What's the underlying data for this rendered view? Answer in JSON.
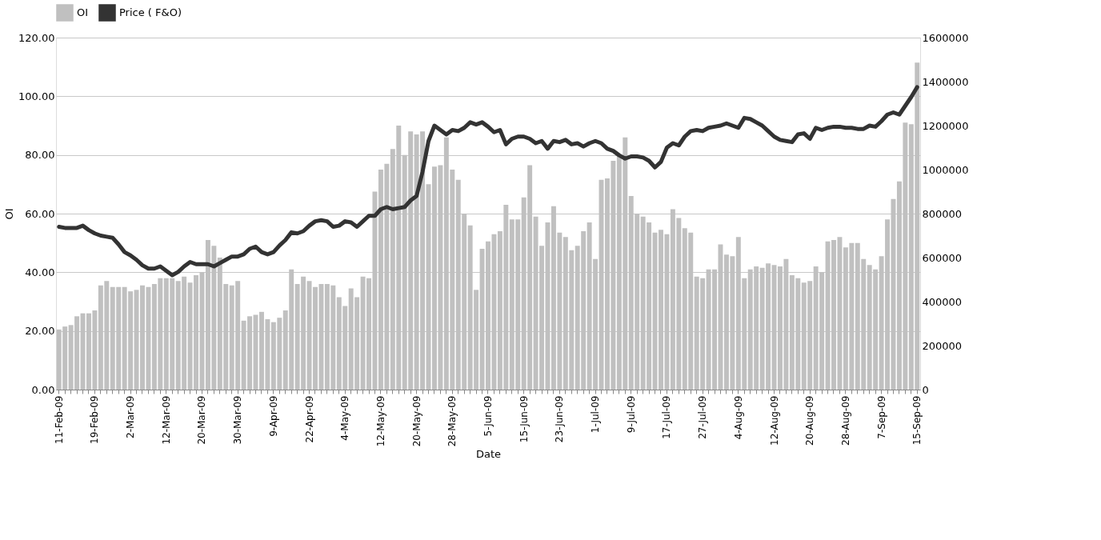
{
  "chart_data": {
    "type": "bar",
    "xlabel": "Date",
    "ylabel": "OI",
    "legend": "top",
    "grid": "y",
    "categories": [
      "11-Feb-09",
      null,
      null,
      null,
      null,
      null,
      "19-Feb-09",
      null,
      null,
      null,
      null,
      null,
      "2-Mar-09",
      null,
      null,
      null,
      null,
      null,
      "12-Mar-09",
      null,
      null,
      null,
      null,
      null,
      "20-Mar-09",
      null,
      null,
      null,
      null,
      null,
      "30-Mar-09",
      null,
      null,
      null,
      null,
      null,
      "9-Apr-09",
      null,
      null,
      null,
      null,
      null,
      "22-Apr-09",
      null,
      null,
      null,
      null,
      null,
      "4-May-09",
      null,
      null,
      null,
      null,
      null,
      "12-May-09",
      null,
      null,
      null,
      null,
      null,
      "20-May-09",
      null,
      null,
      null,
      null,
      null,
      "28-May-09",
      null,
      null,
      null,
      null,
      null,
      "5-Jun-09",
      null,
      null,
      null,
      null,
      null,
      "15-Jun-09",
      null,
      null,
      null,
      null,
      null,
      "23-Jun-09",
      null,
      null,
      null,
      null,
      null,
      "1-Jul-09",
      null,
      null,
      null,
      null,
      null,
      "9-Jul-09",
      null,
      null,
      null,
      null,
      null,
      "17-Jul-09",
      null,
      null,
      null,
      null,
      null,
      "27-Jul-09",
      null,
      null,
      null,
      null,
      null,
      "4-Aug-09",
      null,
      null,
      null,
      null,
      null,
      "12-Aug-09",
      null,
      null,
      null,
      null,
      null,
      "20-Aug-09",
      null,
      null,
      null,
      null,
      null,
      "28-Aug-09",
      null,
      null,
      null,
      null,
      null,
      "7-Sep-09",
      null,
      null,
      null,
      null,
      null,
      "15-Sep-09"
    ],
    "series": [
      {
        "name": "OI",
        "color": "#c0c0c0",
        "values": [
          20.5,
          21.5,
          22,
          25,
          26,
          26,
          27,
          35.5,
          37,
          35,
          35,
          35,
          33.5,
          34,
          35.5,
          35,
          36,
          38,
          38,
          38,
          37,
          38.5,
          36.5,
          39,
          40,
          51,
          49,
          45,
          36,
          35.5,
          37,
          23.5,
          25,
          25.5,
          26.5,
          24,
          23,
          24.5,
          27,
          41,
          36,
          38.5,
          37,
          35,
          36,
          36,
          35.5,
          31.5,
          28.5,
          34.5,
          31.5,
          38.5,
          38,
          67.5,
          75,
          77,
          82,
          90,
          80,
          88,
          87,
          88,
          70,
          76,
          76.5,
          86,
          75,
          71.5,
          60,
          56,
          34,
          48,
          50.5,
          53,
          54,
          63,
          58,
          58,
          65.5,
          76.5,
          59,
          49,
          57,
          62.5,
          53.5,
          52,
          47.5,
          49,
          54,
          57,
          44.5,
          71.5,
          72,
          78,
          80,
          86,
          66,
          60,
          59,
          57,
          53.5,
          54.5,
          53,
          61.5,
          58.5,
          55,
          53.5,
          38.5,
          38,
          41,
          41,
          49.5,
          46,
          45.5,
          52,
          38,
          41,
          42,
          41.5,
          43,
          42.5,
          42,
          44.5,
          39,
          38,
          36.5,
          37,
          42,
          40,
          50.5,
          51,
          52,
          48.5,
          50,
          50,
          44.5,
          42.5,
          41,
          45.5,
          58,
          65,
          71,
          91,
          90.5,
          111.5
        ]
      },
      {
        "name": "Price ( F&O)",
        "type": "line",
        "axis": "y2",
        "color": "#333333",
        "values": [
          740000,
          735000,
          735000,
          735000,
          745000,
          725000,
          710000,
          700000,
          695000,
          690000,
          660000,
          625000,
          610000,
          590000,
          565000,
          550000,
          550000,
          560000,
          540000,
          520000,
          535000,
          560000,
          580000,
          570000,
          570000,
          570000,
          560000,
          575000,
          590000,
          605000,
          605000,
          615000,
          640000,
          650000,
          625000,
          615000,
          625000,
          655000,
          680000,
          715000,
          710000,
          720000,
          745000,
          765000,
          770000,
          765000,
          740000,
          745000,
          765000,
          760000,
          740000,
          765000,
          790000,
          790000,
          820000,
          830000,
          820000,
          825000,
          830000,
          860000,
          880000,
          990000,
          1130000,
          1200000,
          1180000,
          1160000,
          1180000,
          1175000,
          1190000,
          1215000,
          1205000,
          1215000,
          1195000,
          1170000,
          1180000,
          1115000,
          1140000,
          1150000,
          1150000,
          1140000,
          1120000,
          1130000,
          1095000,
          1130000,
          1125000,
          1135000,
          1115000,
          1120000,
          1105000,
          1120000,
          1130000,
          1120000,
          1095000,
          1085000,
          1065000,
          1050000,
          1060000,
          1060000,
          1055000,
          1040000,
          1010000,
          1035000,
          1100000,
          1120000,
          1110000,
          1150000,
          1175000,
          1180000,
          1175000,
          1190000,
          1195000,
          1200000,
          1210000,
          1200000,
          1190000,
          1235000,
          1230000,
          1215000,
          1200000,
          1175000,
          1150000,
          1135000,
          1130000,
          1125000,
          1160000,
          1165000,
          1140000,
          1190000,
          1180000,
          1190000,
          1195000,
          1195000,
          1190000,
          1190000,
          1185000,
          1185000,
          1200000,
          1195000,
          1220000,
          1250000,
          1260000,
          1250000,
          1290000,
          1330000,
          1375000
        ]
      }
    ],
    "ylim": [
      0,
      120
    ],
    "yticks": [
      {
        "value": 0,
        "label": "0.00"
      },
      {
        "value": 20,
        "label": "20.00"
      },
      {
        "value": 40,
        "label": "40.00"
      },
      {
        "value": 60,
        "label": "60.00"
      },
      {
        "value": 80,
        "label": "80.00"
      },
      {
        "value": 100,
        "label": "100.00"
      },
      {
        "value": 120,
        "label": "120.00"
      }
    ],
    "y2lim": [
      0,
      1600000
    ],
    "y2ticks": [
      0,
      200000,
      400000,
      600000,
      800000,
      1000000,
      1200000,
      1400000,
      1600000
    ]
  }
}
